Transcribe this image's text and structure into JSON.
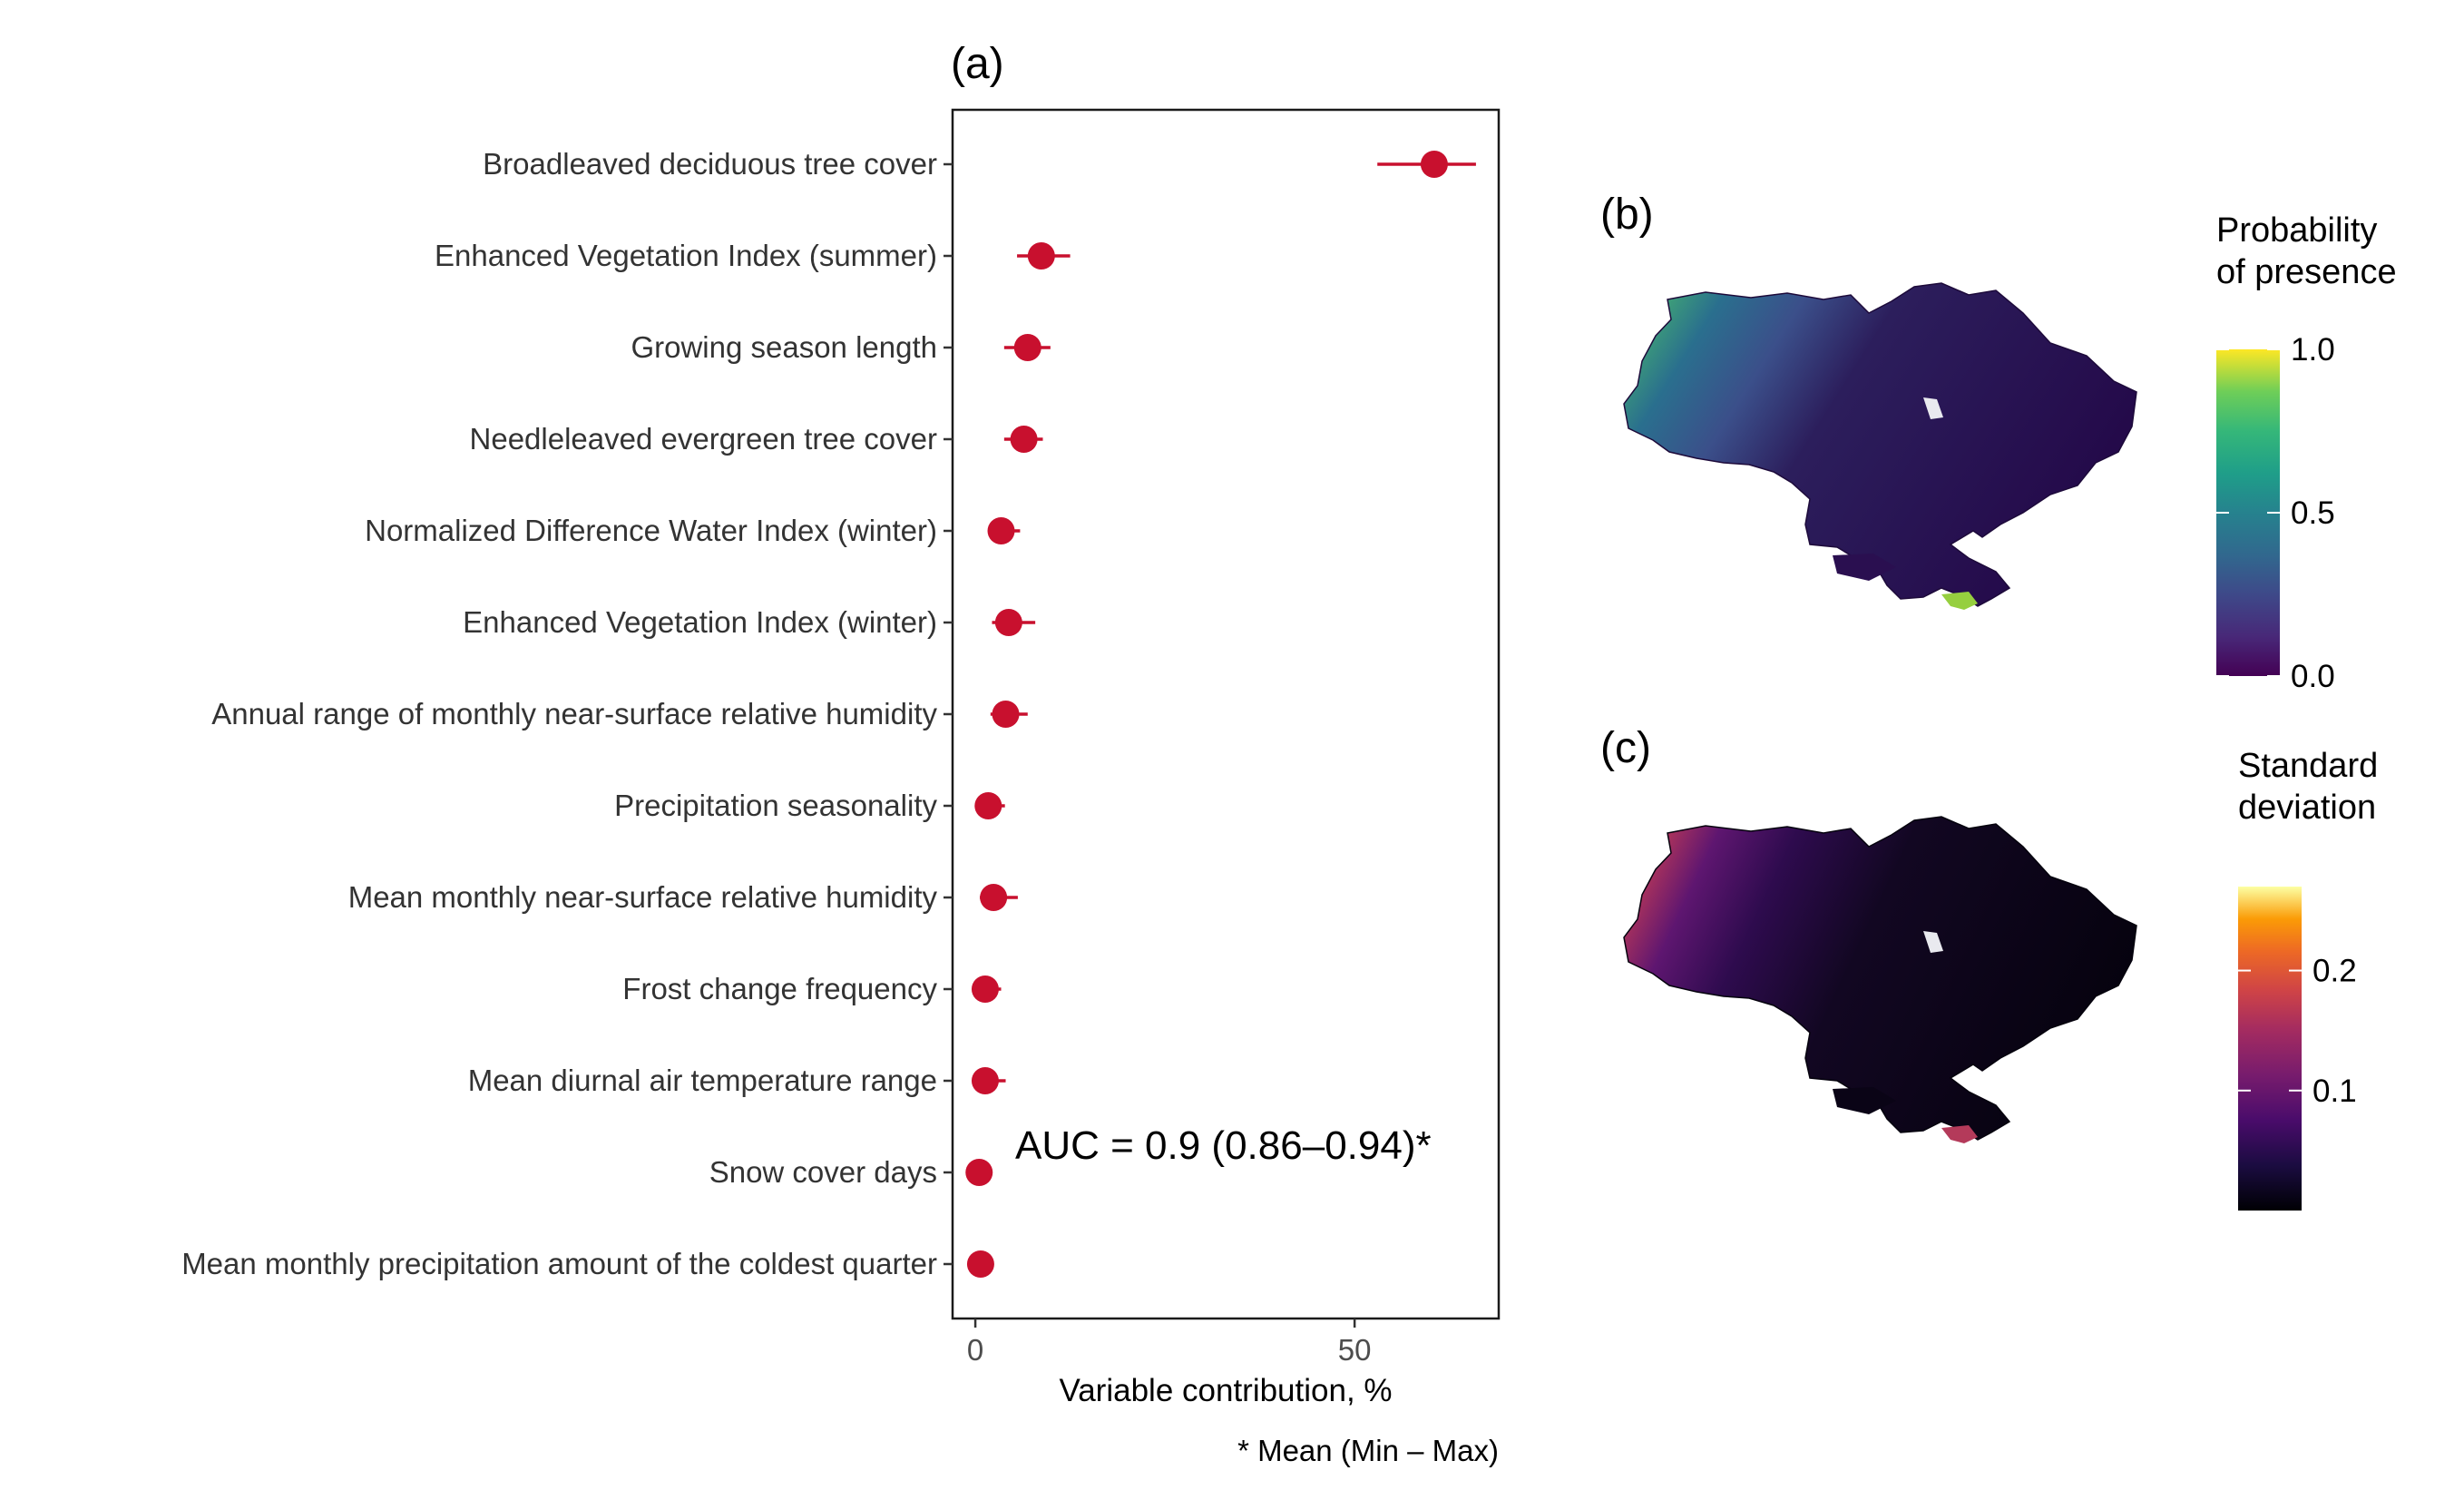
{
  "chart_data": [
    {
      "type": "scatter",
      "panel_label": "(a)",
      "xlabel": "Variable contribution, %",
      "xlim": [
        -3,
        69
      ],
      "xticks": [
        0,
        50
      ],
      "xtick_labels": [
        "0",
        "50"
      ],
      "grid": false,
      "marker_color": "#c8102e",
      "annotation": "AUC = 0.9 (0.86–0.94)*",
      "footnote": "* Mean (Min – Max)",
      "categories": [
        "Broadleaved deciduous tree cover",
        "Enhanced Vegetation Index (summer)",
        "Growing season length",
        "Needleleaved evergreen tree cover",
        "Normalized Difference Water Index (winter)",
        "Enhanced Vegetation Index (winter)",
        "Annual range of monthly near-surface relative humidity",
        "Precipitation seasonality",
        "Mean monthly near-surface relative humidity",
        "Frost change frequency",
        "Mean diurnal air temperature range",
        "Snow cover days",
        "Mean monthly precipitation amount of the coldest quarter"
      ],
      "series": [
        {
          "mean": [
            60.5,
            8.7,
            6.9,
            6.4,
            3.4,
            4.4,
            4.0,
            1.7,
            2.4,
            1.3,
            1.3,
            0.5,
            0.7
          ],
          "min": [
            53.0,
            5.5,
            3.8,
            3.8,
            1.9,
            2.2,
            2.0,
            0.7,
            0.6,
            0.4,
            0.4,
            0.2,
            0.3
          ],
          "max": [
            66.0,
            12.5,
            9.9,
            8.9,
            5.9,
            7.9,
            6.9,
            3.9,
            5.6,
            3.4,
            4.0,
            1.2,
            1.3
          ]
        }
      ]
    },
    {
      "type": "heatmap",
      "panel_label": "(b)",
      "legend_title": [
        "Probability",
        "of presence"
      ],
      "scale": "viridis",
      "legend_ticks": [
        0.0,
        0.5,
        1.0
      ],
      "legend_tick_labels": [
        "0.0",
        "0.5",
        "1.0"
      ],
      "range": [
        0,
        1
      ]
    },
    {
      "type": "heatmap",
      "panel_label": "(c)",
      "legend_title": [
        "Standard",
        "deviation"
      ],
      "scale": "inferno",
      "legend_ticks": [
        0.1,
        0.2
      ],
      "legend_tick_labels": [
        "0.1",
        "0.2"
      ],
      "range": [
        0,
        0.27
      ]
    }
  ]
}
